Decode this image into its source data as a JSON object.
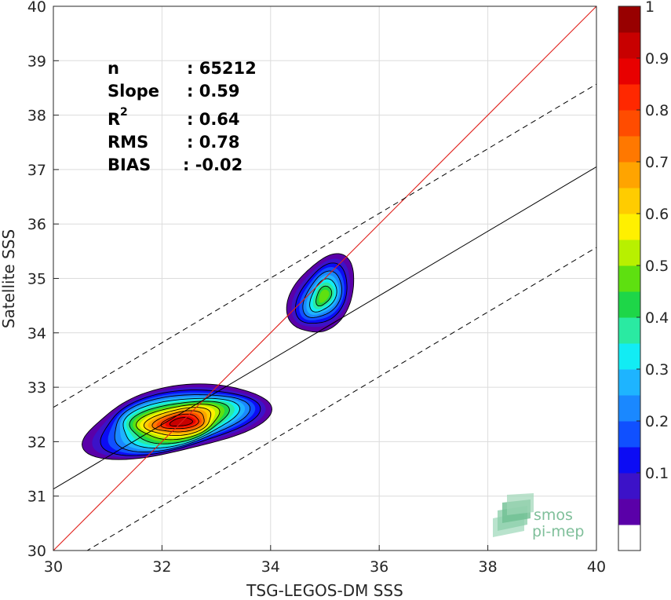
{
  "chart_data": {
    "type": "scatter",
    "xlabel": "TSG-LEGOS-DM SSS",
    "ylabel": "Satellite SSS",
    "xlim": [
      30,
      40
    ],
    "ylim": [
      30,
      40
    ],
    "x_ticks": [
      "30",
      "32",
      "34",
      "36",
      "38",
      "40"
    ],
    "y_ticks": [
      "30",
      "31",
      "32",
      "33",
      "34",
      "35",
      "36",
      "37",
      "38",
      "39",
      "40"
    ],
    "grid": true,
    "stats": {
      "n_label": "n",
      "n_value": ": 65212",
      "slope_label": "Slope",
      "slope_value": ": 0.59",
      "r2_label": "R",
      "r2_sup": "2",
      "r2_value": ": 0.64",
      "rms_label": "RMS",
      "rms_value": ": 0.78",
      "bias_label": "BIAS",
      "bias_value": ": -0.02"
    },
    "lines": {
      "identity": {
        "color": "#e0201b",
        "x": [
          30,
          40
        ],
        "y": [
          30,
          40
        ]
      },
      "fit": {
        "color": "#000000",
        "x": [
          30,
          40
        ],
        "y": [
          31.13,
          37.05
        ]
      },
      "fit_upper": {
        "color": "#000000",
        "dash": true,
        "x": [
          30,
          40
        ],
        "y": [
          32.63,
          38.57
        ]
      },
      "fit_lower": {
        "color": "#000000",
        "dash": true,
        "x": [
          30,
          40
        ],
        "y": [
          29.63,
          35.57
        ]
      }
    },
    "density_clusters": [
      {
        "center": [
          32.6,
          32.4
        ],
        "peak": 0.95
      },
      {
        "center": [
          35.2,
          35.0
        ],
        "peak": 0.52
      }
    ],
    "colorbar": {
      "ticks": [
        "0.1",
        "0.2",
        "0.3",
        "0.4",
        "0.5",
        "0.6",
        "0.7",
        "0.8",
        "0.9",
        "1"
      ],
      "range": [
        0,
        1
      ],
      "colors": [
        "#ffffff",
        "#5a00a8",
        "#3c12c8",
        "#0c0cf4",
        "#1050ff",
        "#1a88ff",
        "#1eb4ff",
        "#12ecf4",
        "#2aeaa2",
        "#1ed648",
        "#5ee010",
        "#b8f000",
        "#fff000",
        "#ffcc00",
        "#ffa400",
        "#ff7800",
        "#ff4c00",
        "#ff2800",
        "#e80000",
        "#c80000",
        "#980000"
      ]
    }
  },
  "logo": {
    "line1": "smos",
    "line2": "pi-mep"
  }
}
